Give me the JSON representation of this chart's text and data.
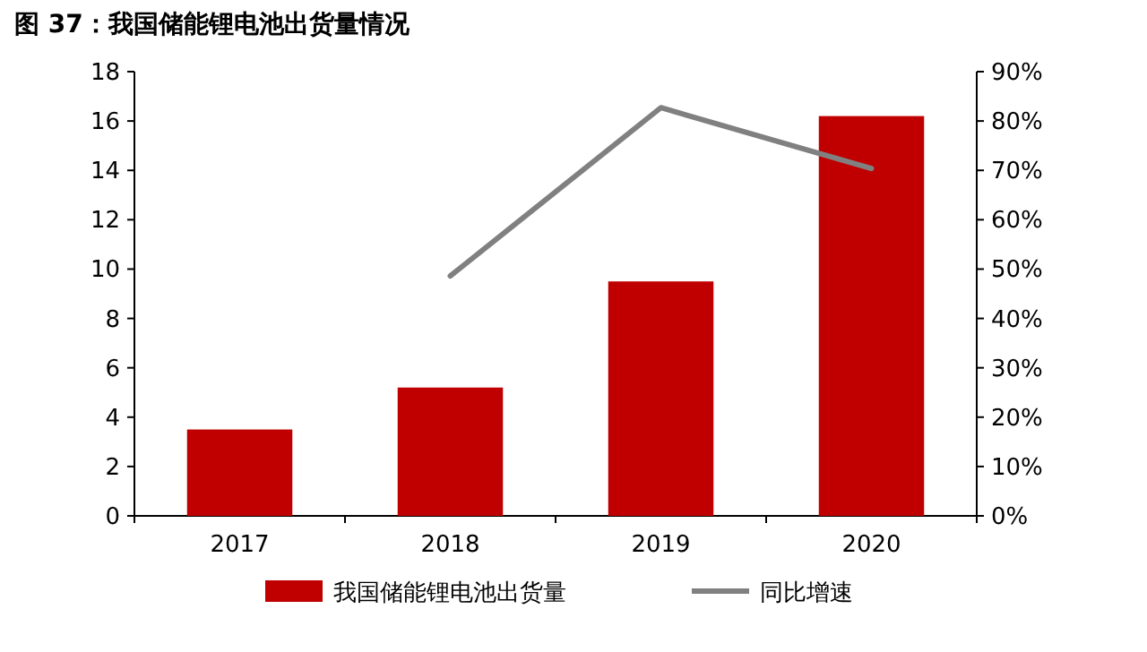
{
  "chart_data": {
    "type": "bar",
    "title": "图 37：我国储能锂电池出货量情况",
    "categories": [
      "2017",
      "2018",
      "2019",
      "2020"
    ],
    "series": [
      {
        "name": "我国储能锂电池出货量",
        "color": "#c00000",
        "values": [
          3.5,
          5.2,
          9.5,
          16.2
        ]
      },
      {
        "name": "同比增速",
        "type": "line",
        "axis": "y2",
        "color": "#808080",
        "values": [
          null,
          48.6,
          82.7,
          70.4
        ]
      }
    ],
    "ylim": [
      0,
      18
    ],
    "yticks": [
      0,
      2,
      4,
      6,
      8,
      10,
      12,
      14,
      16,
      18
    ],
    "y2lim": [
      0,
      90
    ],
    "y2ticks": [
      {
        "value": 0,
        "label": "0%"
      },
      {
        "value": 10,
        "label": "10%"
      },
      {
        "value": 20,
        "label": "20%"
      },
      {
        "value": 30,
        "label": "30%"
      },
      {
        "value": 40,
        "label": "40%"
      },
      {
        "value": 50,
        "label": "50%"
      },
      {
        "value": 60,
        "label": "60%"
      },
      {
        "value": 70,
        "label": "70%"
      },
      {
        "value": 80,
        "label": "80%"
      },
      {
        "value": 90,
        "label": "90%"
      }
    ],
    "legend": "bottom"
  }
}
